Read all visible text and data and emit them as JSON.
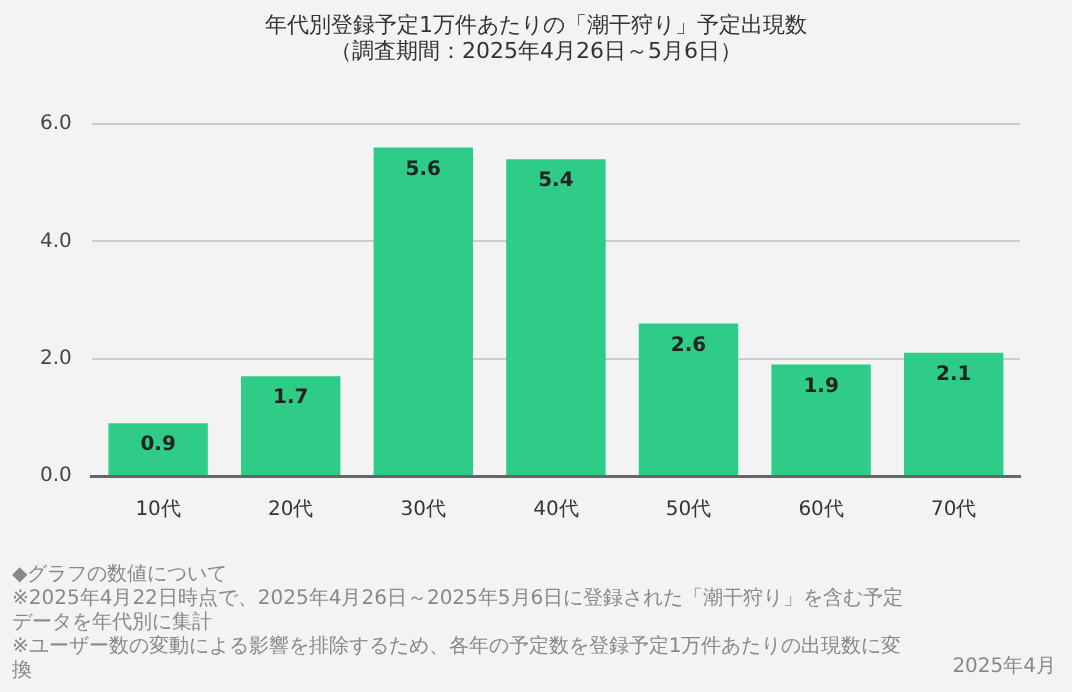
{
  "chart_data": {
    "type": "bar",
    "title": "年代別登録予定1万件あたりの「潮干狩り」予定出現数",
    "subtitle": "（調査期間：2025年4月26日～5月6日）",
    "categories": [
      "10代",
      "20代",
      "30代",
      "40代",
      "50代",
      "60代",
      "70代"
    ],
    "values": [
      0.9,
      1.7,
      5.6,
      5.4,
      2.6,
      1.9,
      2.1
    ],
    "color": "#2ecc87",
    "ylim": [
      0,
      6
    ],
    "yticks": [
      {
        "value": 0,
        "label": "0.0"
      },
      {
        "value": 2,
        "label": "2.0"
      },
      {
        "value": 4,
        "label": "4.0"
      },
      {
        "value": 6,
        "label": "6.0"
      }
    ],
    "grid": "y",
    "data_labels": true,
    "legend": false,
    "annotations": [
      "◆グラフの数値について",
      "※2025年4月22日時点で、2025年4月26日～2025年5月6日に登録された「潮干狩り」を含む予定データを年代別に集計",
      "※ユーザー数の変動による影響を排除するため、各年の予定数を登録予定1万件あたりの出現数に変換",
      "2025年4月"
    ]
  }
}
